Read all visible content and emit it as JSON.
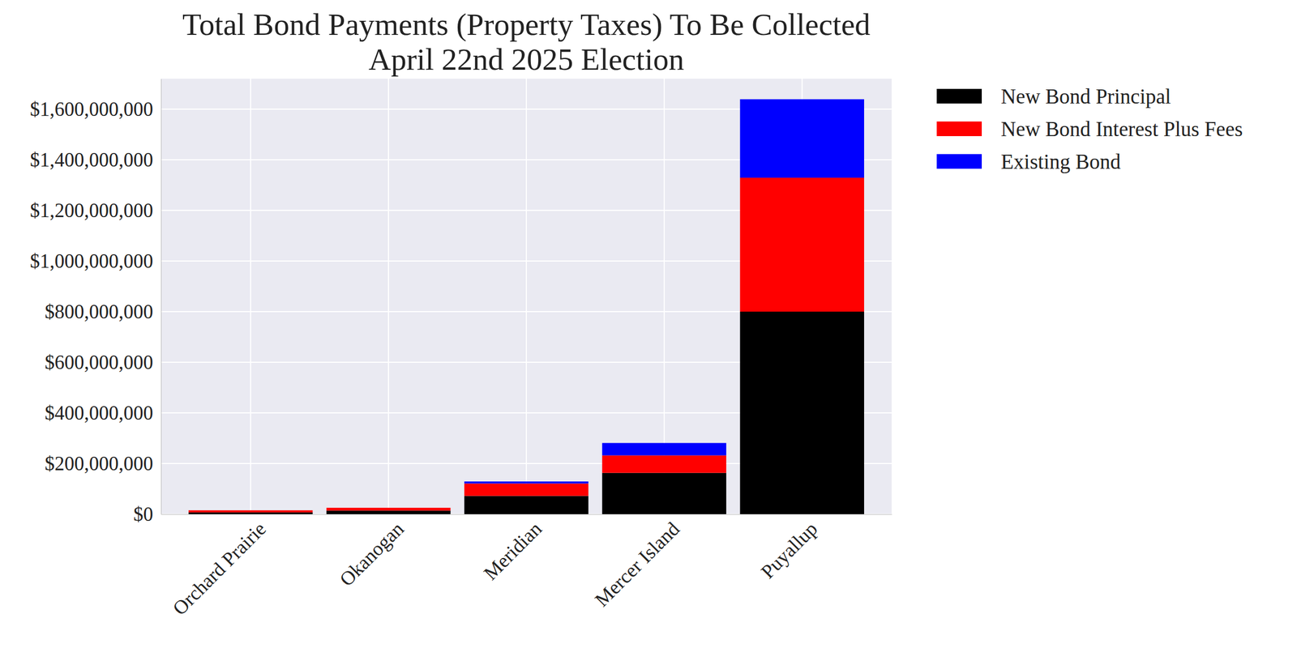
{
  "chart_data": {
    "type": "bar",
    "title": "Total Bond Payments (Property Taxes) To Be Collected\nApril 22nd 2025 Election",
    "categories": [
      "Orchard Prairie",
      "Okanogan",
      "Meridian",
      "Mercer Island",
      "Puyallup"
    ],
    "series": [
      {
        "name": "New Bond Principal",
        "color": "#000000",
        "values": [
          7000000,
          14000000,
          72000000,
          163000000,
          800000000
        ]
      },
      {
        "name": "New Bond Interest Plus Fees",
        "color": "#ff0000",
        "values": [
          8000000,
          11000000,
          49000000,
          69000000,
          529000000
        ]
      },
      {
        "name": "Existing Bond",
        "color": "#0000ff",
        "values": [
          0,
          0,
          8000000,
          49000000,
          310000000
        ]
      }
    ],
    "stacked": true,
    "ylim": [
      0,
      1720000000
    ],
    "yticks": [
      {
        "value": 0,
        "label": "$0"
      },
      {
        "value": 200000000,
        "label": "$200,000,000"
      },
      {
        "value": 400000000,
        "label": "$400,000,000"
      },
      {
        "value": 600000000,
        "label": "$600,000,000"
      },
      {
        "value": 800000000,
        "label": "$800,000,000"
      },
      {
        "value": 1000000000,
        "label": "$1,000,000,000"
      },
      {
        "value": 1200000000,
        "label": "$1,200,000,000"
      },
      {
        "value": 1400000000,
        "label": "$1,400,000,000"
      },
      {
        "value": 1600000000,
        "label": "$1,600,000,000"
      }
    ],
    "grid": true,
    "legend": "right"
  }
}
